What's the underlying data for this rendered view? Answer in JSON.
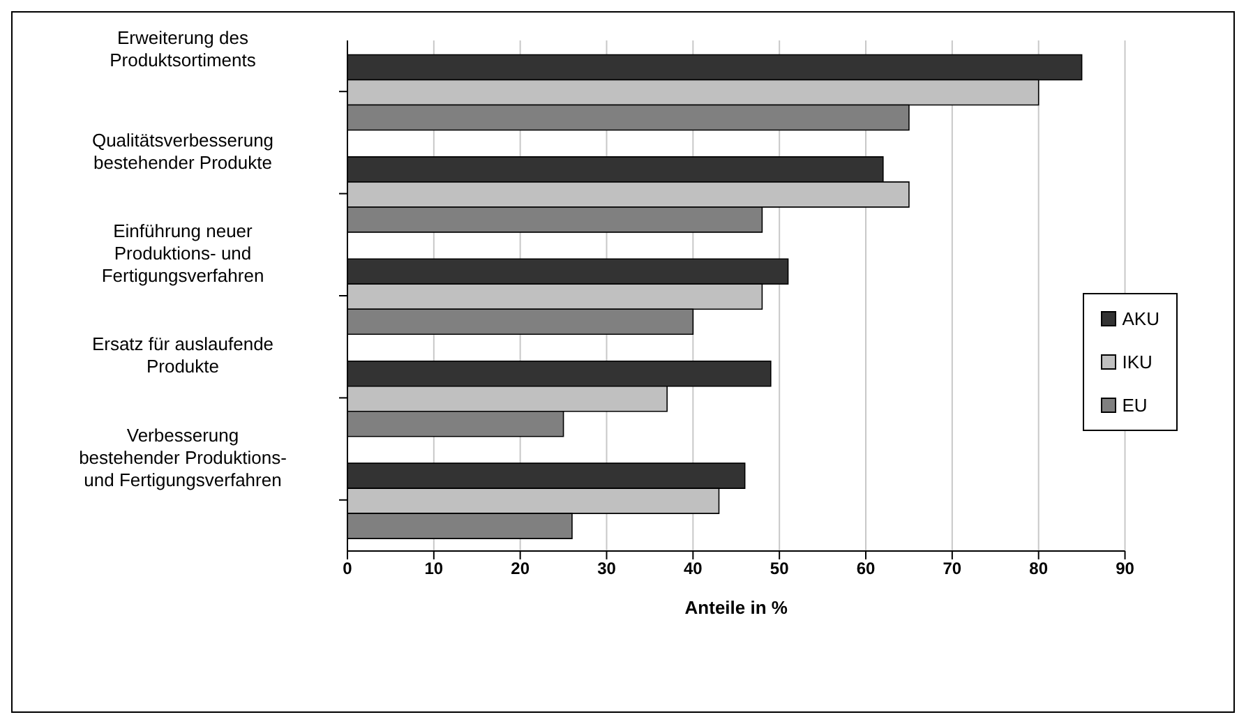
{
  "chart_data": {
    "type": "bar",
    "orientation": "horizontal",
    "xlabel": "Anteile in %",
    "categories": [
      "Erweiterung des\nProduktsortiments",
      "Qualitätsverbesserung\nbestehender Produkte",
      "Einführung neuer\nProduktions- und\nFertigungsverfahren",
      "Ersatz für auslaufende\nProdukte",
      "Verbesserung\nbestehender Produktions-\nund Fertigungsverfahren"
    ],
    "series": [
      {
        "name": "AKU",
        "color": "#333333",
        "values": [
          85,
          62,
          51,
          49,
          46
        ]
      },
      {
        "name": "IKU",
        "color": "#c0c0c0",
        "values": [
          80,
          65,
          48,
          37,
          43
        ]
      },
      {
        "name": "EU",
        "color": "#808080",
        "values": [
          65,
          48,
          40,
          25,
          26
        ]
      }
    ],
    "xlim": [
      0,
      90
    ],
    "xticks": [
      0,
      10,
      20,
      30,
      40,
      50,
      60,
      70,
      80,
      90
    ],
    "grid": "x",
    "legend": "right"
  }
}
